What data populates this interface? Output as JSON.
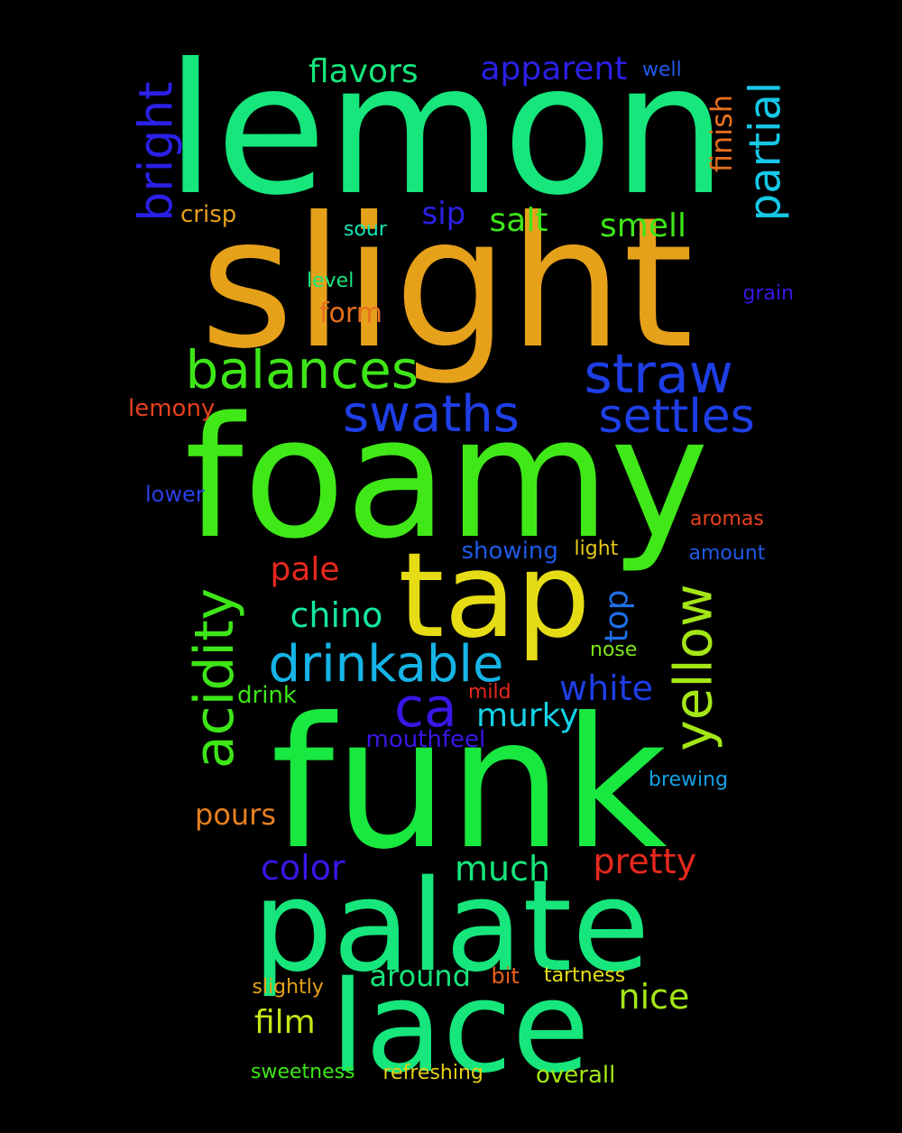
{
  "words": [
    {
      "text": "lemon",
      "color": "#16e67c",
      "vertical": false
    },
    {
      "text": "slight",
      "color": "#e6a11b",
      "vertical": false
    },
    {
      "text": "foamy",
      "color": "#40e818",
      "vertical": false
    },
    {
      "text": "funk",
      "color": "#18e840",
      "vertical": false
    },
    {
      "text": "palate",
      "color": "#16e67c",
      "vertical": false
    },
    {
      "text": "lace",
      "color": "#16e67c",
      "vertical": false
    },
    {
      "text": "tap",
      "color": "#e6dc16",
      "vertical": false
    },
    {
      "text": "balances",
      "color": "#3ee618",
      "vertical": false
    },
    {
      "text": "straw",
      "color": "#1e3ee6",
      "vertical": false
    },
    {
      "text": "swaths",
      "color": "#1e3ee6",
      "vertical": false
    },
    {
      "text": "settles",
      "color": "#1e3ee6",
      "vertical": false
    },
    {
      "text": "drinkable",
      "color": "#16b4e6",
      "vertical": false
    },
    {
      "text": "ca",
      "color": "#3a16e6",
      "vertical": false
    },
    {
      "text": "acidity",
      "color": "#3ee618",
      "vertical": true
    },
    {
      "text": "yellow",
      "color": "#a4e616",
      "vertical": true
    },
    {
      "text": "bright",
      "color": "#2a20e6",
      "vertical": true
    },
    {
      "text": "partial",
      "color": "#16c8e6",
      "vertical": true
    },
    {
      "text": "flavors",
      "color": "#16e67c",
      "vertical": false
    },
    {
      "text": "apparent",
      "color": "#2a20e6",
      "vertical": false
    },
    {
      "text": "well",
      "color": "#1e5ae6",
      "vertical": false
    },
    {
      "text": "finish",
      "color": "#e6701e",
      "vertical": true
    },
    {
      "text": "sip",
      "color": "#2a20e6",
      "vertical": false
    },
    {
      "text": "salt",
      "color": "#3ee618",
      "vertical": false
    },
    {
      "text": "smell",
      "color": "#3ee618",
      "vertical": false
    },
    {
      "text": "crisp",
      "color": "#e6a11b",
      "vertical": false
    },
    {
      "text": "sour",
      "color": "#16e6b4",
      "vertical": false
    },
    {
      "text": "level",
      "color": "#16e67c",
      "vertical": false
    },
    {
      "text": "grain",
      "color": "#3a16e6",
      "vertical": false
    },
    {
      "text": "form",
      "color": "#e6701e",
      "vertical": false
    },
    {
      "text": "lemony",
      "color": "#e6401e",
      "vertical": false
    },
    {
      "text": "lower",
      "color": "#2a40e6",
      "vertical": false
    },
    {
      "text": "aromas",
      "color": "#e6401e",
      "vertical": false
    },
    {
      "text": "amount",
      "color": "#1e5ae6",
      "vertical": false
    },
    {
      "text": "showing",
      "color": "#1e5ae6",
      "vertical": false
    },
    {
      "text": "light",
      "color": "#e6c818",
      "vertical": false
    },
    {
      "text": "pale",
      "color": "#e6281e",
      "vertical": false
    },
    {
      "text": "chino",
      "color": "#16e6a0",
      "vertical": false
    },
    {
      "text": "top",
      "color": "#1e6ee6",
      "vertical": true
    },
    {
      "text": "nose",
      "color": "#7ce616",
      "vertical": false
    },
    {
      "text": "white",
      "color": "#1e3ee6",
      "vertical": false
    },
    {
      "text": "drink",
      "color": "#3ee618",
      "vertical": false
    },
    {
      "text": "mild",
      "color": "#e6281e",
      "vertical": false
    },
    {
      "text": "murky",
      "color": "#16d2e6",
      "vertical": false
    },
    {
      "text": "mouthfeel",
      "color": "#3a16e6",
      "vertical": false
    },
    {
      "text": "brewing",
      "color": "#16a0e6",
      "vertical": false
    },
    {
      "text": "pours",
      "color": "#e6801e",
      "vertical": false
    },
    {
      "text": "color",
      "color": "#3a16e6",
      "vertical": false
    },
    {
      "text": "much",
      "color": "#16e67c",
      "vertical": false
    },
    {
      "text": "pretty",
      "color": "#e6281e",
      "vertical": false
    },
    {
      "text": "around",
      "color": "#16e67c",
      "vertical": false
    },
    {
      "text": "bit",
      "color": "#e6601e",
      "vertical": false
    },
    {
      "text": "tartness",
      "color": "#e6e016",
      "vertical": false
    },
    {
      "text": "slightly",
      "color": "#e6a11b",
      "vertical": false
    },
    {
      "text": "nice",
      "color": "#a4e616",
      "vertical": false
    },
    {
      "text": "film",
      "color": "#c8e616",
      "vertical": false
    },
    {
      "text": "sweetness",
      "color": "#3ee618",
      "vertical": false
    },
    {
      "text": "refreshing",
      "color": "#e6d016",
      "vertical": false
    },
    {
      "text": "overall",
      "color": "#a4e616",
      "vertical": false
    }
  ]
}
